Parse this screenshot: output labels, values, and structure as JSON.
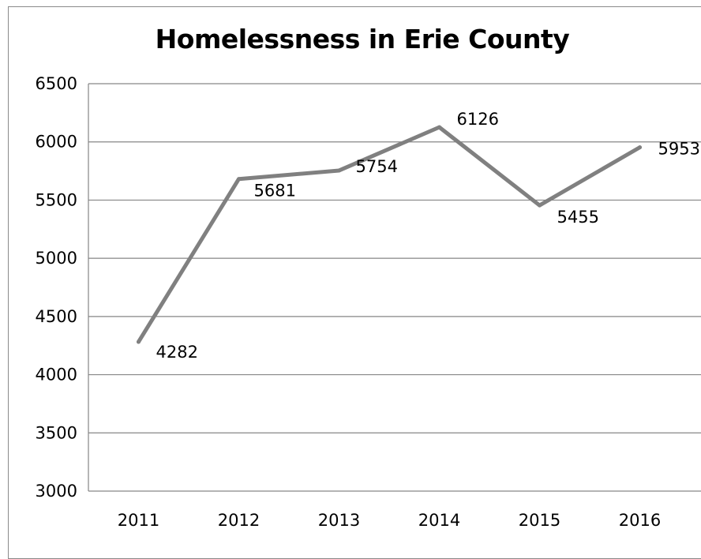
{
  "chart_data": {
    "type": "line",
    "title": "Homelessness in Erie County",
    "categories": [
      "2011",
      "2012",
      "2013",
      "2014",
      "2015",
      "2016"
    ],
    "series": [
      {
        "values": [
          4282,
          5681,
          5754,
          6126,
          5455,
          5953
        ]
      }
    ],
    "data_labels": [
      "4282",
      "5681",
      "5754",
      "6126",
      "5455",
      "5953"
    ],
    "y_ticks": [
      "3000",
      "3500",
      "4000",
      "4500",
      "5000",
      "5500",
      "6000",
      "6500"
    ],
    "ylim": [
      3000,
      6500
    ],
    "grid": true,
    "legend": "none",
    "colors": {
      "line": "#808080",
      "grid": "#868686",
      "text": "#000000"
    }
  }
}
